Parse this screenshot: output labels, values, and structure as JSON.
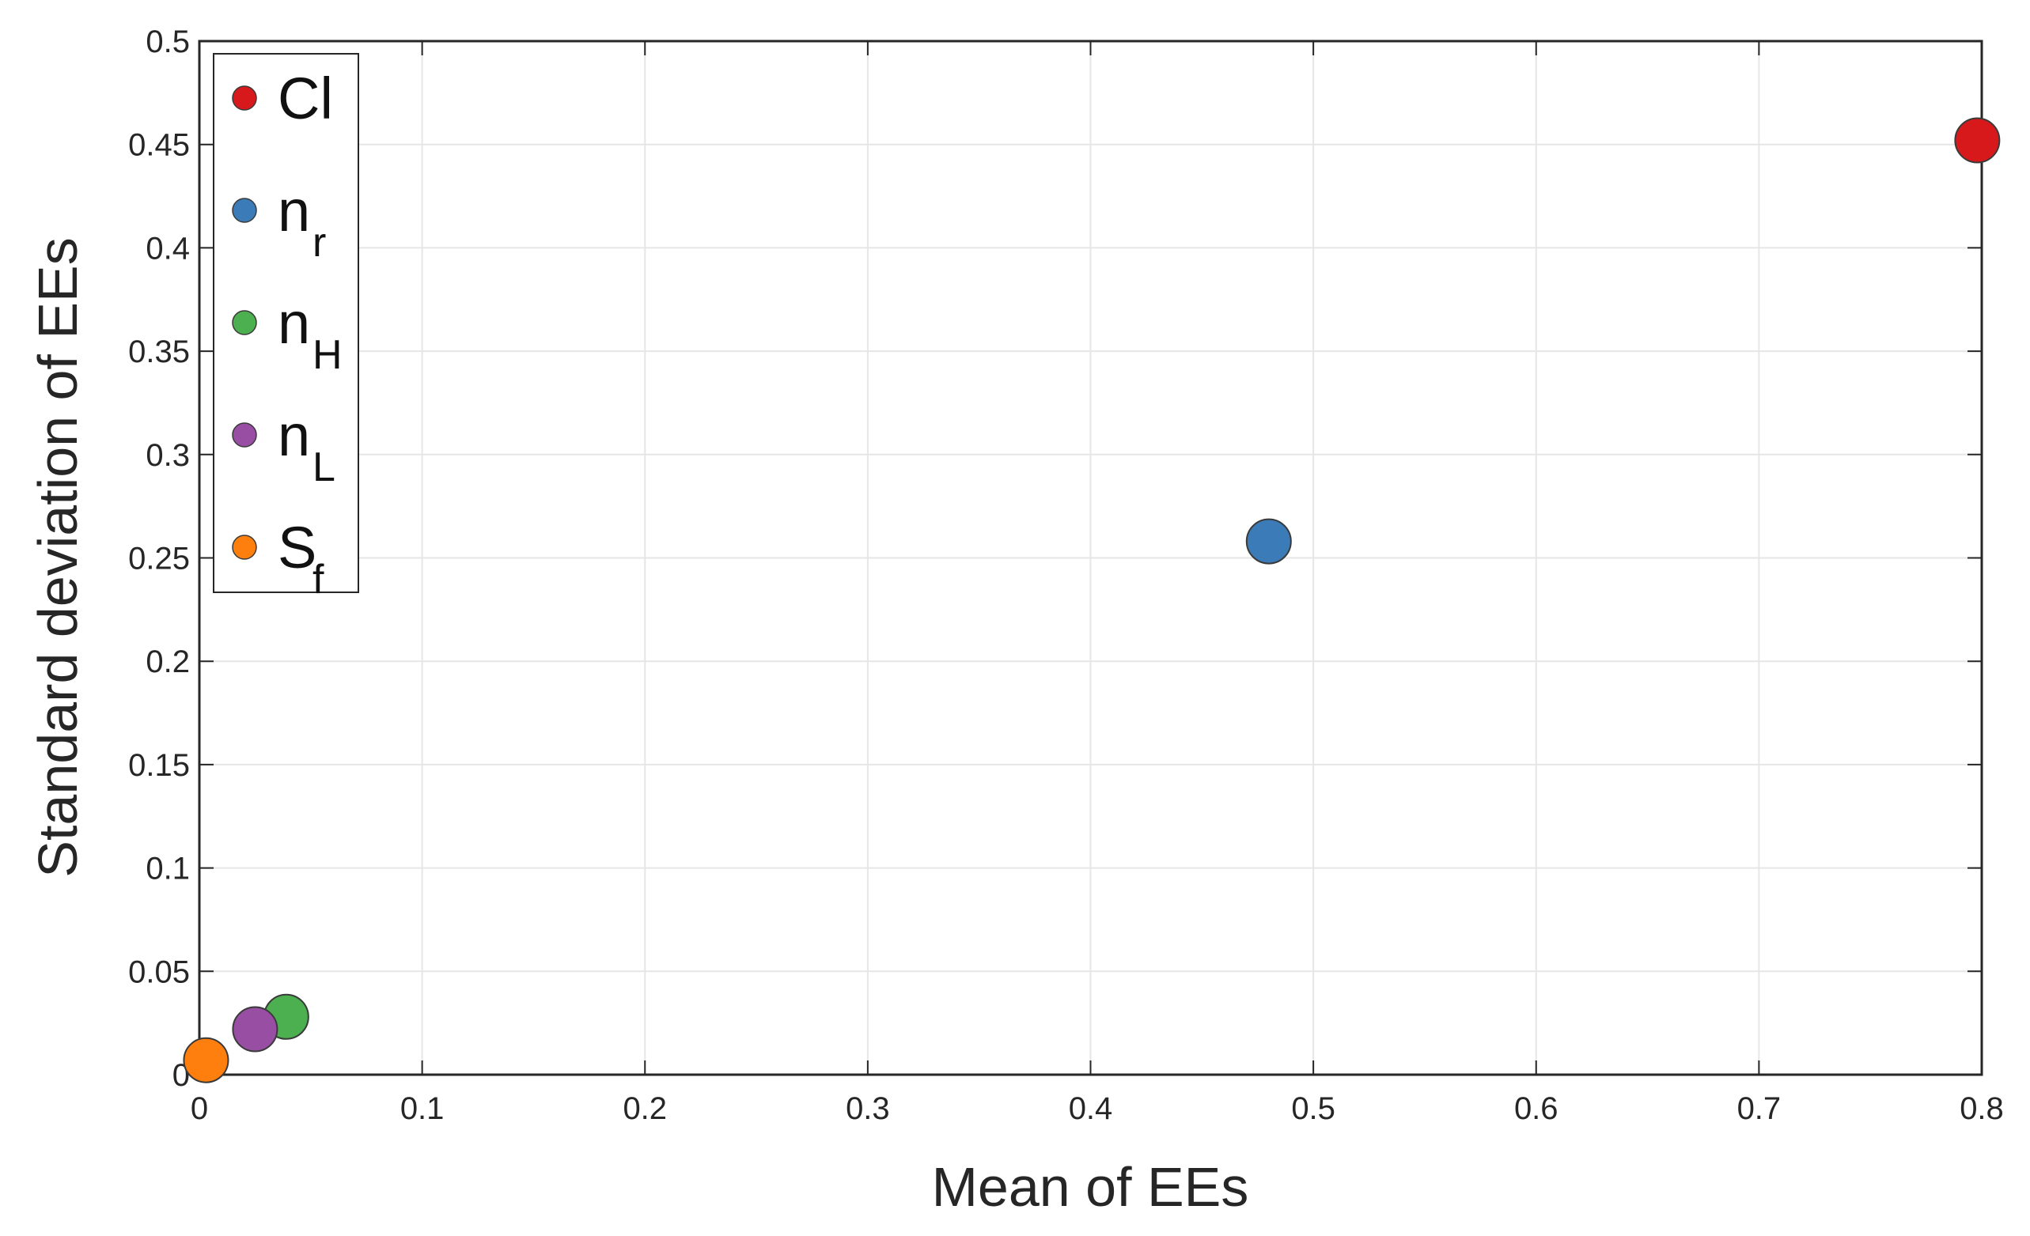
{
  "chart_data": {
    "type": "scatter",
    "title": "",
    "xlabel": "Mean of EEs",
    "ylabel": "Standard deviation of EEs",
    "xlim": [
      0,
      0.8
    ],
    "ylim": [
      0,
      0.5
    ],
    "x_ticks": [
      "0",
      "0.1",
      "0.2",
      "0.3",
      "0.4",
      "0.5",
      "0.6",
      "0.7",
      "0.8"
    ],
    "y_ticks": [
      "0",
      "0.05",
      "0.1",
      "0.15",
      "0.2",
      "0.25",
      "0.3",
      "0.35",
      "0.4",
      "0.45",
      "0.5"
    ],
    "grid": true,
    "legend_position": "top-left",
    "series": [
      {
        "name": "Cl",
        "name_main": "Cl",
        "name_sub": "",
        "color": "#D7191C",
        "x": 0.798,
        "y": 0.452
      },
      {
        "name": "n_r",
        "name_main": "n",
        "name_sub": "r",
        "color": "#3B7CB8",
        "x": 0.48,
        "y": 0.258
      },
      {
        "name": "n_H",
        "name_main": "n",
        "name_sub": "H",
        "color": "#4CAF50",
        "x": 0.039,
        "y": 0.028
      },
      {
        "name": "n_L",
        "name_main": "n",
        "name_sub": "L",
        "color": "#984EA3",
        "x": 0.025,
        "y": 0.022
      },
      {
        "name": "S_f",
        "name_main": "S",
        "name_sub": "f",
        "color": "#FF7F0E",
        "x": 0.003,
        "y": 0.007
      }
    ]
  }
}
